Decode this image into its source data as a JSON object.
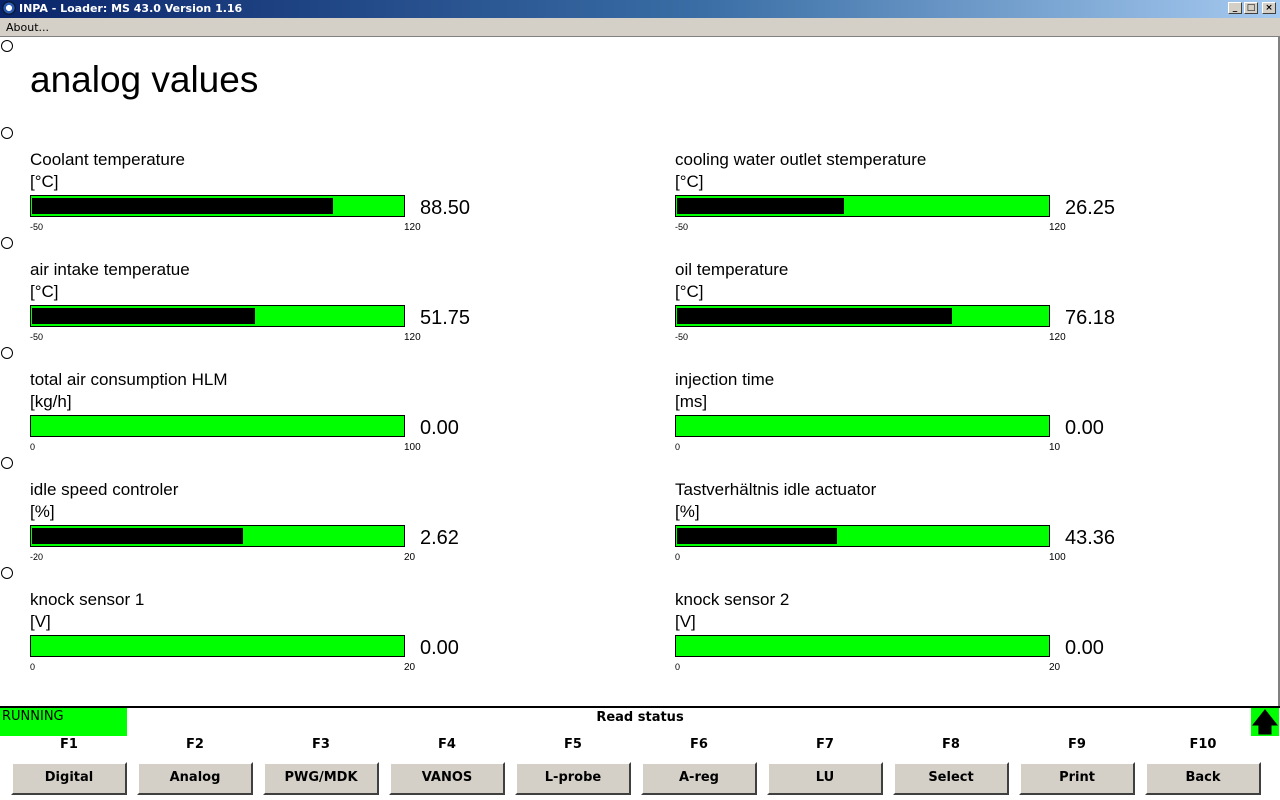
{
  "window": {
    "title": "INPA - Loader:  MS 43.0 Version 1.16",
    "minimize_icon": "minimize-icon",
    "maximize_icon": "maximize-icon",
    "close_icon": "close-icon"
  },
  "menu": {
    "about": "About..."
  },
  "page": {
    "title": "analog values"
  },
  "gauges": [
    {
      "label": "Coolant temperature",
      "unit": "[°C]",
      "value": "88.50",
      "min": "-50",
      "max": "120",
      "fill_fraction": 0.81
    },
    {
      "label": "cooling water outlet stemperature",
      "unit": "[°C]",
      "value": "26.25",
      "min": "-50",
      "max": "120",
      "fill_fraction": 0.45
    },
    {
      "label": "air intake temperatue",
      "unit": "[°C]",
      "value": "51.75",
      "min": "-50",
      "max": "120",
      "fill_fraction": 0.6
    },
    {
      "label": "oil temperature",
      "unit": "[°C]",
      "value": "76.18",
      "min": "-50",
      "max": "120",
      "fill_fraction": 0.74
    },
    {
      "label": "total air consumption HLM",
      "unit": "[kg/h]",
      "value": "0.00",
      "min": "0",
      "max": "100",
      "fill_fraction": 0.0
    },
    {
      "label": "injection time",
      "unit": "[ms]",
      "value": "0.00",
      "min": "0",
      "max": "10",
      "fill_fraction": 0.0
    },
    {
      "label": "idle speed controler",
      "unit": "[%]",
      "value": "2.62",
      "min": "-20",
      "max": "20",
      "fill_fraction": 0.57
    },
    {
      "label": "Tastverhältnis idle actuator",
      "unit": "[%]",
      "value": "43.36",
      "min": "0",
      "max": "100",
      "fill_fraction": 0.43
    },
    {
      "label": "knock sensor 1",
      "unit": "[V]",
      "value": "0.00",
      "min": "0",
      "max": "20",
      "fill_fraction": 0.0
    },
    {
      "label": "knock sensor 2",
      "unit": "[V]",
      "value": "0.00",
      "min": "0",
      "max": "20",
      "fill_fraction": 0.0
    }
  ],
  "status": {
    "badge": "RUNNING",
    "text": "Read status",
    "arrow_icon": "arrow-up-icon"
  },
  "function_keys": [
    {
      "key": "F1",
      "label": "Digital"
    },
    {
      "key": "F2",
      "label": "Analog"
    },
    {
      "key": "F3",
      "label": "PWG/MDK"
    },
    {
      "key": "F4",
      "label": "VANOS"
    },
    {
      "key": "F5",
      "label": "L-probe"
    },
    {
      "key": "F6",
      "label": "A-reg"
    },
    {
      "key": "F7",
      "label": "LU"
    },
    {
      "key": "F8",
      "label": "Select"
    },
    {
      "key": "F9",
      "label": "Print"
    },
    {
      "key": "F10",
      "label": "Back"
    }
  ],
  "colors": {
    "bar_green": "#00ff00",
    "bar_fill": "#000000",
    "titlebar": "#0a246a",
    "face": "#d4d0c8"
  }
}
